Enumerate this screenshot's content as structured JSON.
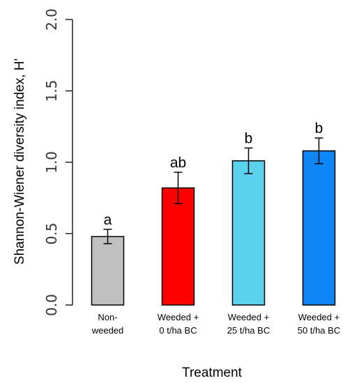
{
  "chart_data": {
    "type": "bar",
    "title": "",
    "xlabel": "Treatment",
    "ylabel": "Shannon-Wiener diversity index, H'",
    "ylim": [
      0,
      2.0
    ],
    "yticks": [
      "0.0",
      "0.5",
      "1.0",
      "1.5",
      "2.0"
    ],
    "grid": false,
    "categories": [
      [
        "Non-",
        "weeded"
      ],
      [
        "Weeded +",
        "0 t/ha BC"
      ],
      [
        "Weeded +",
        "25 t/ha BC"
      ],
      [
        "Weeded +",
        "50 t/ha BC"
      ]
    ],
    "values": [
      0.48,
      0.82,
      1.01,
      1.08
    ],
    "error": [
      0.05,
      0.11,
      0.09,
      0.09
    ],
    "significance_labels": [
      "a",
      "ab",
      "b",
      "b"
    ],
    "colors": [
      "#c0c0c0",
      "#ff0000",
      "#5bd1ed",
      "#0f86f5"
    ]
  }
}
